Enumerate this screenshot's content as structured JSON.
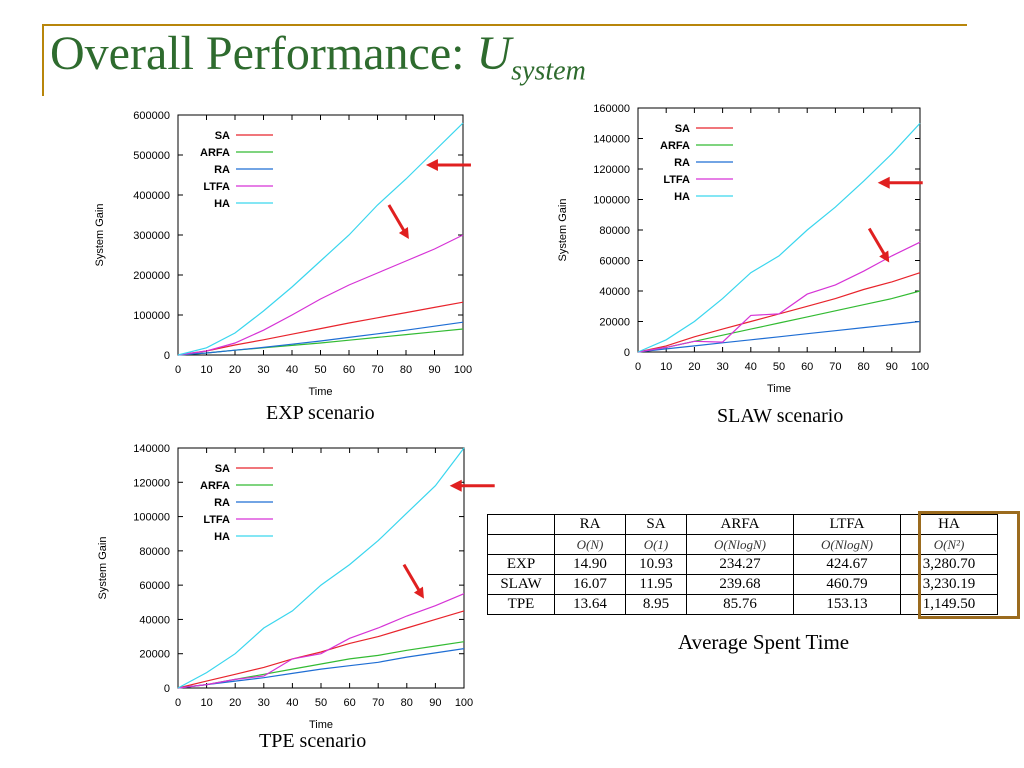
{
  "title": {
    "main": "Overall Performance: ",
    "var": "U",
    "sub": "system"
  },
  "colors": {
    "SA": "#e8242c",
    "ARFA": "#33bb33",
    "RA": "#1f6ed4",
    "LTFA": "#d633d6",
    "HA": "#3ad6ee",
    "arrow": "#e02020",
    "accent": "#b8860b",
    "title": "#2e6b2e"
  },
  "chart_data": [
    {
      "type": "line",
      "caption": "EXP scenario",
      "xlabel": "Time",
      "ylabel": "System Gain",
      "xlim": [
        0,
        100
      ],
      "ylim": [
        0,
        600000
      ],
      "xticks": [
        0,
        10,
        20,
        30,
        40,
        50,
        60,
        70,
        80,
        90,
        100
      ],
      "yticks": [
        0,
        100000,
        200000,
        300000,
        400000,
        500000,
        600000
      ],
      "legend": "top-left",
      "x": [
        0,
        10,
        20,
        30,
        40,
        50,
        60,
        70,
        80,
        90,
        100
      ],
      "series": [
        {
          "name": "SA",
          "values": [
            0,
            10000,
            25000,
            38000,
            52000,
            66000,
            80000,
            93000,
            106000,
            119000,
            132000
          ]
        },
        {
          "name": "ARFA",
          "values": [
            0,
            5000,
            12000,
            18000,
            24000,
            30000,
            37000,
            44000,
            51000,
            58000,
            65000
          ]
        },
        {
          "name": "RA",
          "values": [
            0,
            5000,
            12000,
            19000,
            27000,
            35000,
            44000,
            53000,
            62000,
            72000,
            82000
          ]
        },
        {
          "name": "LTFA",
          "values": [
            0,
            10000,
            30000,
            62000,
            100000,
            140000,
            175000,
            205000,
            235000,
            265000,
            300000
          ]
        },
        {
          "name": "HA",
          "values": [
            0,
            18000,
            55000,
            110000,
            170000,
            235000,
            300000,
            375000,
            440000,
            510000,
            580000
          ]
        }
      ],
      "arrows": [
        {
          "x": 87,
          "y": 475000,
          "dir": "left"
        },
        {
          "x": 74,
          "y": 375000,
          "dir": "down-right"
        }
      ]
    },
    {
      "type": "line",
      "caption": "SLAW scenario",
      "xlabel": "Time",
      "ylabel": "System Gain",
      "xlim": [
        0,
        100
      ],
      "ylim": [
        0,
        160000
      ],
      "xticks": [
        0,
        10,
        20,
        30,
        40,
        50,
        60,
        70,
        80,
        90,
        100
      ],
      "yticks": [
        0,
        20000,
        40000,
        60000,
        80000,
        100000,
        120000,
        140000,
        160000
      ],
      "legend": "top-left",
      "x": [
        0,
        10,
        20,
        30,
        40,
        50,
        60,
        70,
        80,
        90,
        100
      ],
      "series": [
        {
          "name": "SA",
          "values": [
            0,
            4000,
            10000,
            15000,
            20000,
            25000,
            30000,
            35000,
            41000,
            46000,
            52000
          ]
        },
        {
          "name": "ARFA",
          "values": [
            0,
            3000,
            7000,
            11000,
            15000,
            19000,
            23000,
            27000,
            31000,
            35000,
            40000
          ]
        },
        {
          "name": "RA",
          "values": [
            0,
            2000,
            4000,
            6000,
            8000,
            10000,
            12000,
            14000,
            16000,
            18000,
            20000
          ]
        },
        {
          "name": "LTFA",
          "values": [
            0,
            3000,
            7000,
            6500,
            24000,
            25000,
            38000,
            44000,
            53000,
            63000,
            72000
          ]
        },
        {
          "name": "HA",
          "values": [
            0,
            8000,
            20000,
            35000,
            52000,
            63000,
            80000,
            95000,
            112000,
            130000,
            150000
          ]
        }
      ],
      "arrows": [
        {
          "x": 85,
          "y": 111000,
          "dir": "left"
        },
        {
          "x": 82,
          "y": 81000,
          "dir": "down-right"
        }
      ]
    },
    {
      "type": "line",
      "caption": "TPE scenario",
      "xlabel": "Time",
      "ylabel": "System Gain",
      "xlim": [
        0,
        100
      ],
      "ylim": [
        0,
        140000
      ],
      "xticks": [
        0,
        10,
        20,
        30,
        40,
        50,
        60,
        70,
        80,
        90,
        100
      ],
      "yticks": [
        0,
        20000,
        40000,
        60000,
        80000,
        100000,
        120000,
        140000
      ],
      "legend": "top-left",
      "x": [
        0,
        10,
        20,
        30,
        40,
        50,
        60,
        70,
        80,
        90,
        100
      ],
      "series": [
        {
          "name": "SA",
          "values": [
            0,
            4000,
            8000,
            12000,
            17000,
            21000,
            26000,
            30000,
            35000,
            40000,
            45000
          ]
        },
        {
          "name": "ARFA",
          "values": [
            0,
            2000,
            5000,
            8000,
            11000,
            14000,
            17000,
            19000,
            22000,
            24500,
            27000
          ]
        },
        {
          "name": "RA",
          "values": [
            0,
            2000,
            4000,
            6000,
            8500,
            11000,
            13000,
            15000,
            18000,
            20500,
            23000
          ]
        },
        {
          "name": "LTFA",
          "values": [
            0,
            2000,
            5000,
            7000,
            17000,
            20000,
            29000,
            35000,
            42000,
            48000,
            55000
          ]
        },
        {
          "name": "HA",
          "values": [
            0,
            9000,
            20000,
            35000,
            45000,
            60000,
            72000,
            86000,
            102000,
            118000,
            140000
          ]
        }
      ],
      "arrows": [
        {
          "x": 95,
          "y": 118000,
          "dir": "left"
        },
        {
          "x": 79,
          "y": 72000,
          "dir": "down-right"
        }
      ]
    }
  ],
  "table": {
    "caption": "Average Spent Time",
    "headers": [
      "",
      "RA",
      "SA",
      "ARFA",
      "LTFA",
      "HA"
    ],
    "complexity": [
      "",
      "O(N)",
      "O(1)",
      "O(NlogN)",
      "O(NlogN)",
      "O(N²)"
    ],
    "rows": [
      [
        "EXP",
        "14.90",
        "10.93",
        "234.27",
        "424.67",
        "3,280.70"
      ],
      [
        "SLAW",
        "16.07",
        "11.95",
        "239.68",
        "460.79",
        "3,230.19"
      ],
      [
        "TPE",
        "13.64",
        "8.95",
        "85.76",
        "153.13",
        "1,149.50"
      ]
    ]
  }
}
